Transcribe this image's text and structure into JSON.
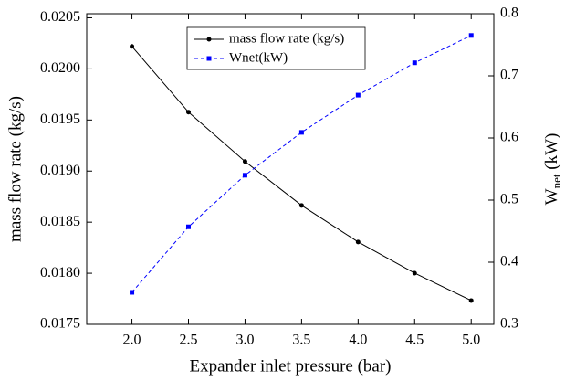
{
  "chart_data": {
    "type": "line",
    "xlabel": "Expander inlet pressure (bar)",
    "ylabel": "mass flow rate (kg/s)",
    "y2label": {
      "main": "W",
      "sub": "net",
      "rest": " (kW)"
    },
    "x": [
      2.0,
      2.5,
      3.0,
      3.5,
      4.0,
      4.5,
      5.0
    ],
    "series": [
      {
        "name": "mass flow rate (kg/s)",
        "color": "#000000",
        "marker": "circle",
        "dash": false,
        "values": [
          0.02022,
          0.019577,
          0.019094,
          0.018664,
          0.018306,
          0.018001,
          0.017733
        ]
      },
      {
        "name": "Wnet(kW)",
        "color": "#0000ff",
        "marker": "square",
        "dash": true,
        "axis": "y2",
        "values": [
          0.3515,
          0.457,
          0.54,
          0.609,
          0.669,
          0.721,
          0.765
        ]
      }
    ],
    "xlim": [
      1.6,
      5.2
    ],
    "xticks": [
      {
        "value": 2.0,
        "label": "2.0"
      },
      2.5,
      {
        "value": 3.0,
        "label": "3.0"
      },
      3.5,
      {
        "value": 4.0,
        "label": "4.0"
      },
      4.5,
      {
        "value": 5.0,
        "label": "5.0"
      }
    ],
    "ylim": [
      0.0175,
      0.02054
    ],
    "yticks": [
      0.0175,
      {
        "value": 0.018,
        "label": "0.0180"
      },
      0.0185,
      {
        "value": 0.019,
        "label": "0.0190"
      },
      0.0195,
      {
        "value": 0.02,
        "label": "0.0200"
      },
      0.0205
    ],
    "y2lim": [
      0.3,
      0.8
    ],
    "y2ticks": [
      0.3,
      0.4,
      0.5,
      0.6,
      0.7,
      0.8
    ],
    "grid": false,
    "legend": "upper center"
  }
}
